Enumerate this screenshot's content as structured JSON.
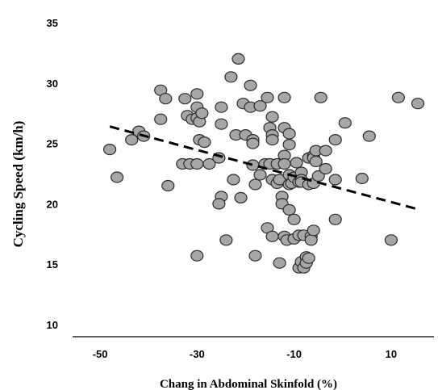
{
  "chart_data": {
    "type": "scatter",
    "title": "",
    "xlabel": "Chang in Abdominal Skinfold (%)",
    "ylabel": "Cycling Speed (km/h)",
    "xlim": [
      -55,
      18
    ],
    "ylim": [
      10,
      35
    ],
    "x_ticks": [
      -50,
      -30,
      -10,
      10
    ],
    "y_ticks": [
      10,
      15,
      20,
      25,
      30,
      35
    ],
    "grid": false,
    "legend": "none",
    "marker_color": "#a6a6a6",
    "marker_edge_color": "#2b2b2b",
    "series": [
      {
        "points": [
          [
            -48,
            24.5
          ],
          [
            -46.5,
            22.2
          ],
          [
            -43.5,
            25.3
          ],
          [
            -42,
            26.0
          ],
          [
            -41,
            25.6
          ],
          [
            -37.5,
            29.4
          ],
          [
            -37.5,
            27.0
          ],
          [
            -36.5,
            28.7
          ],
          [
            -36,
            21.5
          ],
          [
            -33,
            23.3
          ],
          [
            -32.5,
            28.7
          ],
          [
            -32,
            27.3
          ],
          [
            -31,
            27.0
          ],
          [
            -31.5,
            23.3
          ],
          [
            -30,
            29.1
          ],
          [
            -30,
            28.0
          ],
          [
            -30,
            27.1
          ],
          [
            -29.5,
            26.8
          ],
          [
            -29.5,
            25.3
          ],
          [
            -30,
            23.3
          ],
          [
            -29,
            27.5
          ],
          [
            -28.5,
            25.1
          ],
          [
            -27.5,
            23.3
          ],
          [
            -30,
            15.7
          ],
          [
            -25.5,
            23.8
          ],
          [
            -25,
            28.0
          ],
          [
            -25,
            26.6
          ],
          [
            -25,
            20.6
          ],
          [
            -25.5,
            20.0
          ],
          [
            -24,
            17.0
          ],
          [
            -23,
            30.5
          ],
          [
            -22,
            25.7
          ],
          [
            -22.5,
            22.0
          ],
          [
            -21.5,
            32.0
          ],
          [
            -21,
            20.5
          ],
          [
            -20.5,
            28.3
          ],
          [
            -20,
            25.7
          ],
          [
            -19,
            29.8
          ],
          [
            -19,
            28.0
          ],
          [
            -18.5,
            25.3
          ],
          [
            -18.5,
            25.0
          ],
          [
            -18.5,
            23.2
          ],
          [
            -18,
            21.6
          ],
          [
            -18,
            15.7
          ],
          [
            -17,
            28.1
          ],
          [
            -17,
            22.4
          ],
          [
            -16,
            23.3
          ],
          [
            -15.5,
            28.8
          ],
          [
            -15,
            26.3
          ],
          [
            -15,
            23.3
          ],
          [
            -15.5,
            18.0
          ],
          [
            -14.5,
            27.2
          ],
          [
            -14.5,
            25.7
          ],
          [
            -14.5,
            25.3
          ],
          [
            -14.5,
            22.0
          ],
          [
            -14.5,
            17.3
          ],
          [
            -13.5,
            23.3
          ],
          [
            -13.5,
            21.7
          ],
          [
            -13,
            22.0
          ],
          [
            -13,
            15.1
          ],
          [
            -12.5,
            20.6
          ],
          [
            -12.5,
            20.0
          ],
          [
            -12,
            28.8
          ],
          [
            -12,
            26.3
          ],
          [
            -12,
            24.0
          ],
          [
            -12,
            23.3
          ],
          [
            -12,
            17.3
          ],
          [
            -11.5,
            17.0
          ],
          [
            -11,
            25.8
          ],
          [
            -11,
            24.9
          ],
          [
            -11,
            22.4
          ],
          [
            -11,
            21.6
          ],
          [
            -11,
            19.5
          ],
          [
            -10.5,
            21.7
          ],
          [
            -10,
            22.2
          ],
          [
            -10,
            18.7
          ],
          [
            -10,
            17.1
          ],
          [
            -9.5,
            23.4
          ],
          [
            -9,
            21.8
          ],
          [
            -9,
            17.4
          ],
          [
            -9,
            14.7
          ],
          [
            -8.5,
            22.6
          ],
          [
            -8.5,
            22.0
          ],
          [
            -8.5,
            21.8
          ],
          [
            -8.5,
            15.2
          ],
          [
            -8,
            17.4
          ],
          [
            -8,
            14.7
          ],
          [
            -7.5,
            15.6
          ],
          [
            -7.5,
            15.1
          ],
          [
            -7,
            23.8
          ],
          [
            -7,
            21.6
          ],
          [
            -7,
            15.5
          ],
          [
            -6.5,
            17.3
          ],
          [
            -6.5,
            17.0
          ],
          [
            -6,
            24.0
          ],
          [
            -6,
            23.8
          ],
          [
            -6,
            21.7
          ],
          [
            -6,
            17.8
          ],
          [
            -5.5,
            24.4
          ],
          [
            -5.5,
            23.5
          ],
          [
            -5,
            22.3
          ],
          [
            -4.5,
            28.8
          ],
          [
            -3.5,
            24.4
          ],
          [
            -3.5,
            22.9
          ],
          [
            -1.5,
            25.3
          ],
          [
            -1.5,
            22.0
          ],
          [
            -1.5,
            18.7
          ],
          [
            0.5,
            26.7
          ],
          [
            4,
            22.1
          ],
          [
            5.5,
            25.6
          ],
          [
            10,
            17.0
          ],
          [
            11.5,
            28.8
          ],
          [
            15.5,
            28.3
          ]
        ]
      }
    ],
    "trendline": {
      "style": "dashed",
      "from": [
        -48,
        26.4
      ],
      "to": [
        16,
        19.5
      ]
    }
  }
}
